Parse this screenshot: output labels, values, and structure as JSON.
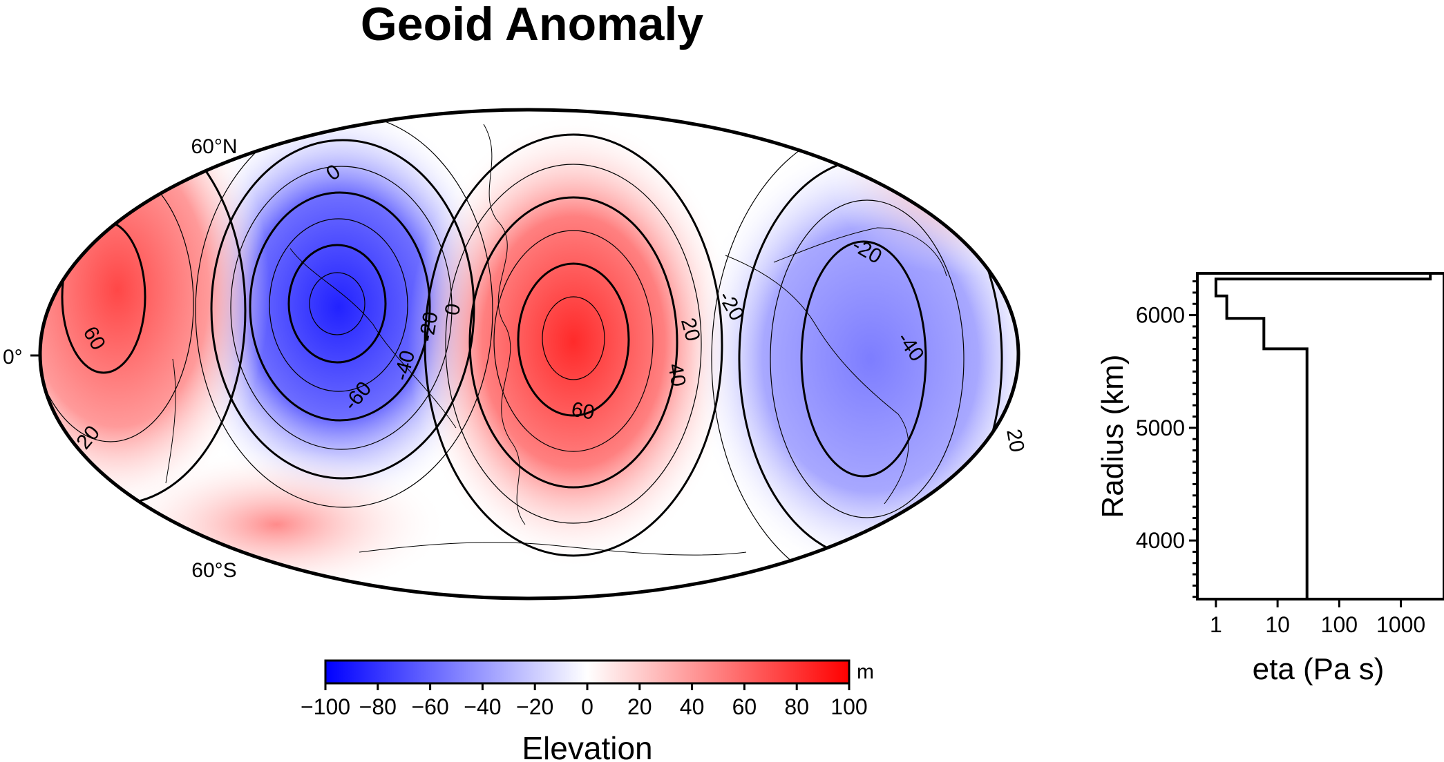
{
  "map": {
    "title": "Geoid Anomaly",
    "lat_labels": [
      "60°N",
      "0°",
      "60°S"
    ],
    "contour_labels": [
      "0",
      "0",
      "-20",
      "-20",
      "-20",
      "-40",
      "-40",
      "-60",
      "20",
      "20",
      "40",
      "60",
      "60",
      "20",
      "0"
    ]
  },
  "colorbar": {
    "label": "Elevation",
    "unit": "m",
    "ticks": [
      "−100",
      "−80",
      "−60",
      "−40",
      "−20",
      "0",
      "20",
      "40",
      "60",
      "80",
      "100"
    ],
    "colors": {
      "min": "#0000ff",
      "mid": "#ffffff",
      "max": "#ff0000"
    }
  },
  "chart_data": [
    {
      "type": "heatmap",
      "title": "Geoid Anomaly",
      "projection": "Hammer (global)",
      "value_range": [
        -100,
        100
      ],
      "value_unit": "m",
      "colormap": [
        "#0000ff",
        "#ffffff",
        "#ff0000"
      ],
      "contour_interval": 10,
      "features": [
        {
          "kind": "low",
          "value": -70,
          "label": "-60"
        },
        {
          "kind": "high",
          "value": 65,
          "label": "60"
        },
        {
          "kind": "low",
          "value": -45,
          "label": "-40"
        },
        {
          "kind": "high",
          "value": 60,
          "label": "60"
        }
      ]
    },
    {
      "type": "line",
      "title": "",
      "xlabel": "eta (Pa s)",
      "ylabel": "Radius (km)",
      "xscale": "log",
      "xlim": [
        0.5,
        5000
      ],
      "ylim": [
        3480,
        6371
      ],
      "x_ticks": [
        "1",
        "10",
        "100",
        "1000"
      ],
      "y_ticks": [
        "4000",
        "5000",
        "6000"
      ],
      "series": [
        {
          "points": [
            [
              30,
              3480
            ],
            [
              30,
              5701
            ],
            [
              6,
              5701
            ],
            [
              6,
              5971
            ],
            [
              1.5,
              5971
            ],
            [
              1.5,
              6171
            ],
            [
              1,
              6171
            ],
            [
              1,
              6321
            ],
            [
              3000,
              6321
            ],
            [
              3000,
              6371
            ]
          ]
        }
      ]
    }
  ]
}
